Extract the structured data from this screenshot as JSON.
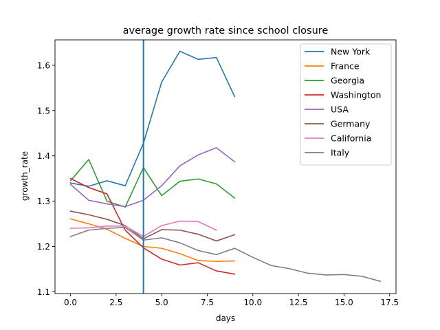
{
  "chart_data": {
    "type": "line",
    "title": "average growth rate since school closure",
    "xlabel": "days",
    "ylabel": "growth_rate",
    "xlim": [
      -0.85,
      17.85
    ],
    "ylim": [
      1.096,
      1.656
    ],
    "xticks": [
      0.0,
      2.5,
      5.0,
      7.5,
      10.0,
      12.5,
      15.0,
      17.5
    ],
    "xtick_labels": [
      "0.0",
      "2.5",
      "5.0",
      "7.5",
      "10.0",
      "12.5",
      "15.0",
      "17.5"
    ],
    "yticks": [
      1.1,
      1.2,
      1.3,
      1.4,
      1.5,
      1.6
    ],
    "ytick_labels": [
      "1.1",
      "1.2",
      "1.3",
      "1.4",
      "1.5",
      "1.6"
    ],
    "grid": false,
    "legend_position": "top-right",
    "vline": {
      "x": 4,
      "color": "#1f77b4"
    },
    "series": [
      {
        "name": "New York",
        "color": "#1f77b4",
        "x": [
          0,
          1,
          2,
          3,
          4,
          5,
          6,
          7,
          8,
          9
        ],
        "y": [
          1.34,
          1.333,
          1.345,
          1.334,
          1.428,
          1.563,
          1.631,
          1.613,
          1.617,
          1.531
        ]
      },
      {
        "name": "France",
        "color": "#ff7f0e",
        "x": [
          0,
          1,
          2,
          3,
          4,
          5,
          6,
          7,
          8,
          9
        ],
        "y": [
          1.261,
          1.25,
          1.238,
          1.218,
          1.2,
          1.196,
          1.184,
          1.169,
          1.167,
          1.168
        ]
      },
      {
        "name": "Georgia",
        "color": "#2ca02c",
        "x": [
          0,
          1,
          2,
          3,
          4,
          5,
          6,
          7,
          8,
          9
        ],
        "y": [
          1.345,
          1.392,
          1.3,
          1.287,
          1.374,
          1.312,
          1.344,
          1.349,
          1.338,
          1.307
        ]
      },
      {
        "name": "Washington",
        "color": "#d62728",
        "x": [
          0,
          1,
          2,
          3,
          4,
          5,
          6,
          7,
          8,
          9
        ],
        "y": [
          1.35,
          1.33,
          1.316,
          1.236,
          1.197,
          1.172,
          1.159,
          1.164,
          1.146,
          1.139
        ]
      },
      {
        "name": "USA",
        "color": "#9467bd",
        "x": [
          0,
          1,
          2,
          3,
          4,
          5,
          6,
          7,
          8,
          9
        ],
        "y": [
          1.337,
          1.302,
          1.294,
          1.288,
          1.302,
          1.334,
          1.378,
          1.402,
          1.418,
          1.387
        ]
      },
      {
        "name": "Germany",
        "color": "#8c564b",
        "x": [
          0,
          1,
          2,
          3,
          4,
          5,
          6,
          7,
          8,
          9
        ],
        "y": [
          1.278,
          1.27,
          1.26,
          1.246,
          1.217,
          1.237,
          1.236,
          1.227,
          1.212,
          1.226
        ]
      },
      {
        "name": "California",
        "color": "#e377c2",
        "x": [
          0,
          1,
          2,
          3,
          4,
          5,
          6,
          7,
          8
        ],
        "y": [
          1.24,
          1.241,
          1.245,
          1.245,
          1.222,
          1.246,
          1.256,
          1.255,
          1.236
        ]
      },
      {
        "name": "Italy",
        "color": "#7f7f7f",
        "x": [
          0,
          1,
          2,
          3,
          4,
          5,
          6,
          7,
          8,
          9,
          10,
          11,
          12,
          13,
          14,
          15,
          16,
          17
        ],
        "y": [
          1.222,
          1.236,
          1.24,
          1.242,
          1.214,
          1.219,
          1.208,
          1.191,
          1.182,
          1.196,
          1.176,
          1.158,
          1.151,
          1.141,
          1.137,
          1.138,
          1.134,
          1.123
        ]
      }
    ]
  }
}
